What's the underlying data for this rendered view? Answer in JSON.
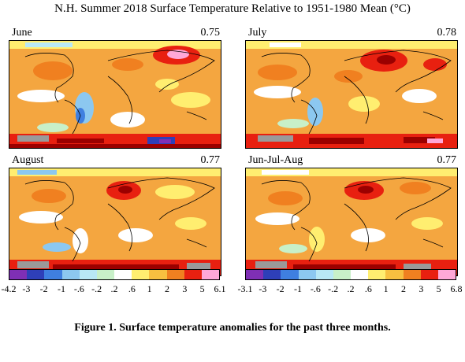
{
  "title": "N.H. Summer 2018 Surface Temperature Relative to 1951-1980 Mean (°C)",
  "panels": [
    {
      "label": "June",
      "value": "0.75"
    },
    {
      "label": "July",
      "value": "0.78"
    },
    {
      "label": "August",
      "value": "0.77"
    },
    {
      "label": "Jun-Jul-Aug",
      "value": "0.77"
    }
  ],
  "colorbars": [
    {
      "ticks": [
        "-4.2",
        "-3",
        "-2",
        "-1",
        "-.6",
        "-.2",
        ".2",
        ".6",
        "1",
        "2",
        "3",
        "5",
        "6.1"
      ]
    },
    {
      "ticks": [
        "-3.1",
        "-3",
        "-2",
        "-1",
        "-.6",
        "-.2",
        ".2",
        ".6",
        "1",
        "2",
        "3",
        "5",
        "6.8"
      ]
    }
  ],
  "colors": [
    "#7f2fb5",
    "#2e3fb8",
    "#3f7fe0",
    "#8cc8f0",
    "#b8e8f5",
    "#c8f0c8",
    "#ffffff",
    "#ffee70",
    "#f8c040",
    "#f08020",
    "#e82010",
    "#9b0000",
    "#ffa8d8"
  ],
  "caption": "Figure 1.  Surface temperature anomalies for the past three months."
}
